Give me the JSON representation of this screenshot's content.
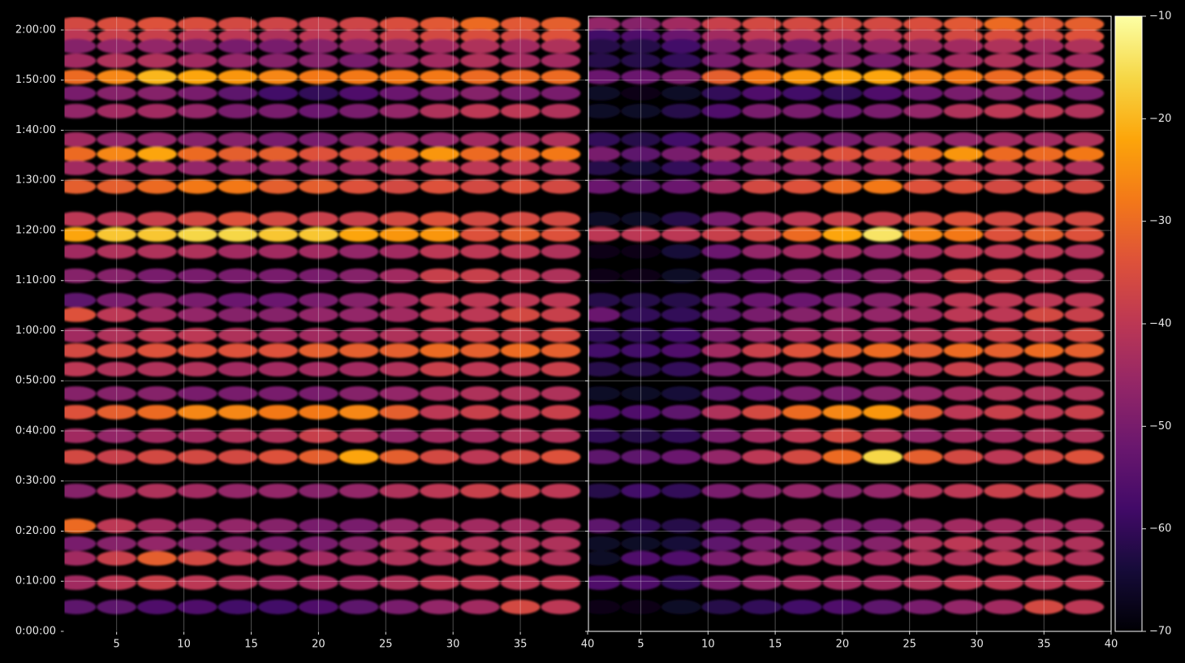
{
  "chart_data": [
    {
      "type": "heatmap",
      "colormap": "inferno",
      "grid": true,
      "x": [
        2,
        5,
        8,
        11,
        14,
        17,
        20,
        23,
        26,
        29,
        32,
        35,
        38
      ],
      "y": [
        7269,
        7123,
        7007,
        6832,
        6638,
        6443,
        6229,
        5889,
        5714,
        5549,
        5326,
        4937,
        4752,
        4548,
        4257,
        3965,
        3790,
        3547,
        3362,
        3139,
        2847,
        2624,
        2342,
        2089,
        1681,
        1263,
        1050,
        875,
        583,
        292
      ],
      "values": [
        [
          -36,
          -35,
          -34,
          -35,
          -36,
          -37,
          -38,
          -37,
          -35,
          -33,
          -30,
          -33,
          -32
        ],
        [
          -40,
          -38,
          -38,
          -40,
          -40,
          -42,
          -40,
          -40,
          -38,
          -36,
          -35,
          -36,
          -34
        ],
        [
          -48,
          -46,
          -46,
          -48,
          -50,
          -50,
          -48,
          -46,
          -45,
          -44,
          -42,
          -44,
          -42
        ],
        [
          -44,
          -42,
          -42,
          -44,
          -46,
          -48,
          -48,
          -50,
          -46,
          -44,
          -42,
          -44,
          -44
        ],
        [
          -30,
          -26,
          -20,
          -22,
          -24,
          -26,
          -28,
          -28,
          -28,
          -28,
          -30,
          -30,
          -30
        ],
        [
          -50,
          -48,
          -48,
          -50,
          -54,
          -58,
          -60,
          -56,
          -52,
          -50,
          -48,
          -50,
          -50
        ],
        [
          -46,
          -44,
          -44,
          -46,
          -50,
          -50,
          -52,
          -50,
          -46,
          -42,
          -40,
          -40,
          -42
        ],
        [
          -44,
          -46,
          -46,
          -48,
          -48,
          -50,
          -50,
          -48,
          -46,
          -46,
          -44,
          -44,
          -42
        ],
        [
          -30,
          -26,
          -22,
          -30,
          -32,
          -32,
          -34,
          -34,
          -30,
          -24,
          -30,
          -30,
          -28
        ],
        [
          -44,
          -44,
          -44,
          -46,
          -46,
          -46,
          -46,
          -44,
          -42,
          -40,
          -40,
          -40,
          -42
        ],
        [
          -32,
          -32,
          -30,
          -28,
          -28,
          -32,
          -32,
          -34,
          -36,
          -34,
          -36,
          -34,
          -36
        ],
        [
          -40,
          -40,
          -38,
          -36,
          -34,
          -36,
          -38,
          -38,
          -36,
          -34,
          -36,
          -36,
          -36
        ],
        [
          -22,
          -18,
          -18,
          -16,
          -16,
          -18,
          -18,
          -22,
          -24,
          -24,
          -34,
          -32,
          -34
        ],
        [
          -44,
          -42,
          -42,
          -42,
          -44,
          -44,
          -44,
          -46,
          -44,
          -40,
          -40,
          -40,
          -42
        ],
        [
          -48,
          -48,
          -50,
          -50,
          -50,
          -50,
          -50,
          -48,
          -44,
          -38,
          -38,
          -40,
          -42
        ],
        [
          -54,
          -50,
          -48,
          -50,
          -52,
          -52,
          -50,
          -48,
          -44,
          -40,
          -40,
          -40,
          -40
        ],
        [
          -34,
          -40,
          -44,
          -46,
          -48,
          -48,
          -46,
          -46,
          -44,
          -40,
          -40,
          -36,
          -38
        ],
        [
          -44,
          -42,
          -40,
          -40,
          -42,
          -44,
          -44,
          -44,
          -42,
          -40,
          -38,
          -38,
          -36
        ],
        [
          -36,
          -36,
          -34,
          -34,
          -34,
          -34,
          -32,
          -32,
          -32,
          -30,
          -32,
          -30,
          -32
        ],
        [
          -40,
          -42,
          -42,
          -42,
          -44,
          -44,
          -44,
          -44,
          -42,
          -38,
          -40,
          -40,
          -38
        ],
        [
          -48,
          -48,
          -48,
          -50,
          -50,
          -50,
          -50,
          -48,
          -46,
          -44,
          -42,
          -42,
          -42
        ],
        [
          -34,
          -32,
          -30,
          -26,
          -26,
          -28,
          -28,
          -26,
          -32,
          -40,
          -38,
          -40,
          -38
        ],
        [
          -44,
          -46,
          -44,
          -44,
          -42,
          -42,
          -38,
          -42,
          -46,
          -44,
          -44,
          -42,
          -42
        ],
        [
          -36,
          -38,
          -36,
          -36,
          -36,
          -34,
          -32,
          -22,
          -32,
          -36,
          -40,
          -36,
          -34
        ],
        [
          -48,
          -44,
          -42,
          -44,
          -46,
          -46,
          -48,
          -46,
          -42,
          -40,
          -38,
          -38,
          -40
        ],
        [
          -30,
          -40,
          -44,
          -46,
          -46,
          -48,
          -50,
          -50,
          -46,
          -44,
          -44,
          -44,
          -44
        ],
        [
          -50,
          -48,
          -46,
          -48,
          -48,
          -50,
          -50,
          -48,
          -42,
          -40,
          -42,
          -42,
          -42
        ],
        [
          -44,
          -38,
          -32,
          -36,
          -40,
          -42,
          -44,
          -44,
          -42,
          -42,
          -40,
          -40,
          -42
        ],
        [
          -44,
          -40,
          -38,
          -40,
          -42,
          -44,
          -44,
          -44,
          -42,
          -40,
          -40,
          -40,
          -40
        ],
        [
          -54,
          -54,
          -56,
          -56,
          -58,
          -58,
          -56,
          -54,
          -50,
          -46,
          -44,
          -36,
          -40
        ]
      ],
      "xlim": [
        1.1,
        40
      ],
      "ylim": [
        0,
        7365
      ],
      "xticks": [
        5,
        10,
        15,
        20,
        25,
        30,
        35,
        40
      ],
      "yticks": [
        {
          "value": 0,
          "label": "0:00:00"
        },
        {
          "value": 600,
          "label": "0:10:00"
        },
        {
          "value": 1200,
          "label": "0:20:00"
        },
        {
          "value": 1800,
          "label": "0:30:00"
        },
        {
          "value": 2400,
          "label": "0:40:00"
        },
        {
          "value": 3000,
          "label": "0:50:00"
        },
        {
          "value": 3600,
          "label": "1:00:00"
        },
        {
          "value": 4200,
          "label": "1:10:00"
        },
        {
          "value": 4800,
          "label": "1:20:00"
        },
        {
          "value": 5400,
          "label": "1:30:00"
        },
        {
          "value": 6000,
          "label": "1:40:00"
        },
        {
          "value": 6600,
          "label": "1:50:00"
        },
        {
          "value": 7200,
          "label": "2:00:00"
        }
      ]
    },
    {
      "type": "heatmap",
      "colormap": "inferno",
      "grid": true,
      "x": [
        2,
        5,
        8,
        11,
        14,
        17,
        20,
        23,
        26,
        29,
        32,
        35,
        38
      ],
      "y": [
        7269,
        7123,
        7007,
        6832,
        6638,
        6443,
        6229,
        5889,
        5714,
        5549,
        5326,
        4937,
        4752,
        4548,
        4257,
        3965,
        3790,
        3547,
        3362,
        3139,
        2847,
        2624,
        2342,
        2089,
        1681,
        1263,
        1050,
        875,
        583,
        292
      ],
      "values": [
        [
          -46,
          -48,
          -44,
          -38,
          -36,
          -36,
          -36,
          -36,
          -35,
          -33,
          -30,
          -33,
          -32
        ],
        [
          -58,
          -56,
          -52,
          -44,
          -40,
          -40,
          -40,
          -40,
          -38,
          -36,
          -35,
          -36,
          -34
        ],
        [
          -62,
          -62,
          -58,
          -50,
          -48,
          -50,
          -48,
          -46,
          -45,
          -44,
          -42,
          -44,
          -42
        ],
        [
          -62,
          -62,
          -60,
          -50,
          -46,
          -48,
          -48,
          -50,
          -46,
          -44,
          -42,
          -44,
          -44
        ],
        [
          -52,
          -52,
          -50,
          -32,
          -28,
          -24,
          -22,
          -22,
          -26,
          -28,
          -30,
          -30,
          -30
        ],
        [
          -66,
          -68,
          -66,
          -60,
          -56,
          -58,
          -60,
          -56,
          -52,
          -50,
          -48,
          -50,
          -50
        ],
        [
          -66,
          -66,
          -62,
          -56,
          -50,
          -50,
          -52,
          -50,
          -46,
          -42,
          -40,
          -40,
          -42
        ],
        [
          -60,
          -62,
          -58,
          -50,
          -48,
          -50,
          -50,
          -48,
          -46,
          -46,
          -44,
          -44,
          -42
        ],
        [
          -50,
          -54,
          -50,
          -42,
          -40,
          -36,
          -34,
          -34,
          -30,
          -24,
          -30,
          -30,
          -28
        ],
        [
          -62,
          -64,
          -60,
          -52,
          -48,
          -46,
          -46,
          -44,
          -42,
          -40,
          -40,
          -40,
          -42
        ],
        [
          -52,
          -54,
          -52,
          -44,
          -36,
          -34,
          -30,
          -28,
          -34,
          -34,
          -36,
          -34,
          -36
        ],
        [
          -66,
          -66,
          -62,
          -50,
          -44,
          -40,
          -38,
          -38,
          -36,
          -34,
          -36,
          -36,
          -36
        ],
        [
          -40,
          -40,
          -40,
          -38,
          -36,
          -30,
          -22,
          -14,
          -26,
          -28,
          -34,
          -32,
          -34
        ],
        [
          -68,
          -68,
          -64,
          -52,
          -46,
          -44,
          -44,
          -46,
          -44,
          -40,
          -40,
          -40,
          -42
        ],
        [
          -68,
          -68,
          -66,
          -54,
          -52,
          -50,
          -50,
          -48,
          -44,
          -38,
          -38,
          -40,
          -42
        ],
        [
          -62,
          -62,
          -62,
          -54,
          -52,
          -52,
          -50,
          -48,
          -44,
          -40,
          -40,
          -40,
          -40
        ],
        [
          -52,
          -60,
          -60,
          -54,
          -50,
          -48,
          -46,
          -46,
          -44,
          -40,
          -40,
          -36,
          -38
        ],
        [
          -60,
          -60,
          -58,
          -50,
          -46,
          -44,
          -44,
          -44,
          -42,
          -40,
          -38,
          -38,
          -36
        ],
        [
          -58,
          -58,
          -56,
          -44,
          -38,
          -34,
          -32,
          -30,
          -32,
          -30,
          -32,
          -30,
          -32
        ],
        [
          -62,
          -62,
          -60,
          -50,
          -46,
          -44,
          -44,
          -44,
          -42,
          -38,
          -40,
          -40,
          -38
        ],
        [
          -66,
          -66,
          -64,
          -54,
          -52,
          -50,
          -50,
          -48,
          -46,
          -44,
          -42,
          -42,
          -42
        ],
        [
          -56,
          -56,
          -54,
          -42,
          -36,
          -30,
          -26,
          -24,
          -32,
          -40,
          -38,
          -40,
          -38
        ],
        [
          -60,
          -62,
          -60,
          -50,
          -44,
          -40,
          -36,
          -42,
          -46,
          -44,
          -44,
          -42,
          -42
        ],
        [
          -54,
          -54,
          -52,
          -46,
          -40,
          -36,
          -30,
          -16,
          -32,
          -36,
          -40,
          -36,
          -34
        ],
        [
          -62,
          -58,
          -60,
          -50,
          -48,
          -46,
          -48,
          -46,
          -42,
          -40,
          -38,
          -38,
          -40
        ],
        [
          -54,
          -60,
          -62,
          -54,
          -50,
          -48,
          -50,
          -50,
          -46,
          -44,
          -44,
          -44,
          -44
        ],
        [
          -66,
          -66,
          -64,
          -54,
          -50,
          -50,
          -50,
          -48,
          -42,
          -40,
          -42,
          -42,
          -42
        ],
        [
          -66,
          -56,
          -56,
          -50,
          -46,
          -44,
          -44,
          -44,
          -42,
          -42,
          -40,
          -40,
          -42
        ],
        [
          -56,
          -56,
          -60,
          -50,
          -46,
          -44,
          -44,
          -44,
          -42,
          -40,
          -40,
          -40,
          -40
        ],
        [
          -68,
          -68,
          -66,
          -62,
          -60,
          -58,
          -56,
          -54,
          -50,
          -46,
          -44,
          -36,
          -40
        ]
      ],
      "xlim": [
        1.1,
        40
      ],
      "ylim": [
        0,
        7365
      ],
      "xticks": [
        5,
        10,
        15,
        20,
        25,
        30,
        35,
        40
      ],
      "yticks": [
        0,
        600,
        1200,
        1800,
        2400,
        3000,
        3600,
        4200,
        4800,
        5400,
        6000,
        6600,
        7200
      ]
    }
  ],
  "colorbar": {
    "colormap": "inferno",
    "lim": [
      -70,
      -10
    ],
    "ticks": [
      {
        "value": -70,
        "label": "−70"
      },
      {
        "value": -60,
        "label": "−60"
      },
      {
        "value": -50,
        "label": "−50"
      },
      {
        "value": -40,
        "label": "−40"
      },
      {
        "value": -30,
        "label": "−30"
      },
      {
        "value": -20,
        "label": "−20"
      },
      {
        "value": -10,
        "label": "−10"
      }
    ]
  }
}
